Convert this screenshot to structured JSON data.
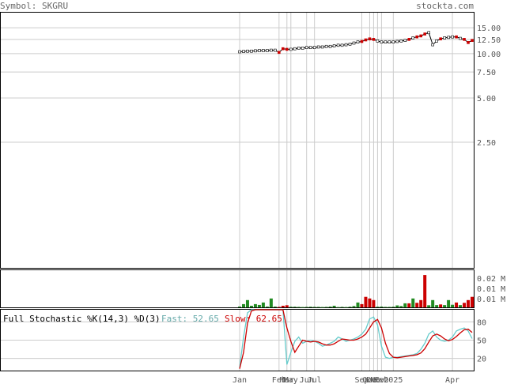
{
  "header": {
    "symbol_text": "Symbol: SKGRU",
    "brand": "stockta.com"
  },
  "stochastic": {
    "title": "Full Stochastic %K(14,3) %D(3)",
    "fast_label": "Fast: 52.65",
    "slow_label": "Slow: 62.65"
  },
  "colors": {
    "background": "#ffffff",
    "grid": "#cccccc",
    "axis": "#000000",
    "up_volume": "#228b22",
    "down_volume": "#cc0000",
    "fast_line": "#66cccc",
    "slow_line": "#cc0000",
    "fast_text": "#66aaaa",
    "slow_text": "#cc0000",
    "header_text": "#666666"
  },
  "chart_data": [
    {
      "type": "line",
      "panel": "price",
      "scale": "log",
      "ylim": [
        0.35,
        19
      ],
      "y_ticks": [
        15.0,
        12.5,
        10.0,
        7.5,
        5.0,
        2.5
      ],
      "y_tick_labels": [
        "15.00",
        "12.50",
        "10.00",
        "7.50",
        "5.00",
        "2.50"
      ],
      "series": [
        {
          "values": [
            10.3,
            10.35,
            10.4,
            10.4,
            10.45,
            10.5,
            10.5,
            10.5,
            10.55,
            10.55,
            10.2,
            10.8,
            10.7,
            10.7,
            10.8,
            10.9,
            10.9,
            11.0,
            11.0,
            11.0,
            11.1,
            11.1,
            11.2,
            11.2,
            11.3,
            11.4,
            11.4,
            11.5,
            11.6,
            11.8,
            12.0,
            12.1,
            12.4,
            12.6,
            12.5,
            12.2,
            12.0,
            12.0,
            12.0,
            12.0,
            12.1,
            12.2,
            12.3,
            12.5,
            12.8,
            13.0,
            13.2,
            13.6,
            13.9,
            11.5,
            12.2,
            12.6,
            12.8,
            12.9,
            13.0,
            13.0,
            12.7,
            12.5,
            11.9,
            12.3
          ]
        }
      ]
    },
    {
      "type": "bar",
      "panel": "volume",
      "y_tick_labels": [
        "0.02 M",
        "0.01 M",
        "0.01 M"
      ],
      "ylim": [
        0,
        0.022
      ],
      "values": [
        0.0005,
        0.002,
        0.0045,
        0.001,
        0.002,
        0.0015,
        0.003,
        0.0005,
        0.0055,
        0.0005,
        0.0003,
        0.001,
        0.0013,
        0.0004,
        0.0004,
        0.0003,
        0.0002,
        0.0003,
        0.0004,
        0.0003,
        0.0003,
        0.0002,
        0.0003,
        0.0005,
        0.001,
        0.0002,
        0.0003,
        0.0002,
        0.0004,
        0.0008,
        0.003,
        0.002,
        0.0065,
        0.0055,
        0.0045,
        0.0004,
        0.0005,
        0.0003,
        0.0003,
        0.0004,
        0.0012,
        0.0008,
        0.0025,
        0.0025,
        0.0055,
        0.0028,
        0.0045,
        0.02,
        0.0013,
        0.0045,
        0.0014,
        0.0018,
        0.0014,
        0.0045,
        0.0016,
        0.003,
        0.0014,
        0.0028,
        0.0045,
        0.0065
      ],
      "up": [
        true,
        true,
        true,
        true,
        true,
        true,
        true,
        true,
        true,
        true,
        false,
        false,
        false,
        true,
        true,
        true,
        true,
        true,
        true,
        true,
        true,
        true,
        true,
        true,
        true,
        true,
        true,
        true,
        true,
        true,
        true,
        false,
        false,
        false,
        false,
        true,
        true,
        true,
        true,
        true,
        true,
        true,
        true,
        false,
        true,
        false,
        false,
        false,
        true,
        true,
        true,
        false,
        true,
        true,
        true,
        false,
        true,
        false,
        false,
        false
      ]
    },
    {
      "type": "line",
      "panel": "stochastic",
      "ylim": [
        0,
        100
      ],
      "y_ticks": [
        80,
        50,
        20
      ],
      "y_tick_labels": [
        "80",
        "50",
        "20"
      ],
      "series": [
        {
          "name": "Fast",
          "values": [
            5,
            55,
            95,
            100,
            100,
            100,
            100,
            100,
            100,
            100,
            100,
            100,
            10,
            30,
            48,
            55,
            45,
            48,
            50,
            48,
            45,
            40,
            42,
            45,
            48,
            55,
            52,
            48,
            50,
            52,
            55,
            60,
            68,
            85,
            88,
            75,
            40,
            22,
            20,
            22,
            22,
            23,
            24,
            25,
            26,
            28,
            35,
            45,
            60,
            65,
            55,
            50,
            48,
            50,
            55,
            65,
            68,
            70,
            65,
            52.65
          ]
        },
        {
          "name": "Slow",
          "values": [
            3,
            30,
            78,
            98,
            100,
            100,
            100,
            100,
            100,
            100,
            100,
            100,
            70,
            48,
            30,
            40,
            50,
            48,
            47,
            48,
            47,
            44,
            42,
            42,
            44,
            48,
            52,
            51,
            50,
            50,
            52,
            55,
            60,
            70,
            80,
            84,
            70,
            45,
            28,
            22,
            21,
            22,
            23,
            24,
            25,
            26,
            29,
            36,
            47,
            57,
            60,
            57,
            52,
            49,
            51,
            56,
            62,
            67,
            68,
            62.65
          ]
        }
      ]
    }
  ],
  "x_axis": {
    "labels": [
      {
        "text": "Jan",
        "i": 0
      },
      {
        "text": "Feb",
        "i": 10
      },
      {
        "text": "Mar",
        "i": 12
      },
      {
        "text": "May",
        "i": 13
      },
      {
        "text": "Jun",
        "i": 17
      },
      {
        "text": "Jul",
        "i": 19
      },
      {
        "text": "Sep",
        "i": 31
      },
      {
        "text": "Oct",
        "i": 33
      },
      {
        "text": "Dec",
        "i": 34
      },
      {
        "text": "Nov",
        "i": 35
      },
      {
        "text": "Feb",
        "i": 36
      },
      {
        "text": "2025",
        "i": 39
      },
      {
        "text": "Apr",
        "i": 54
      }
    ]
  }
}
